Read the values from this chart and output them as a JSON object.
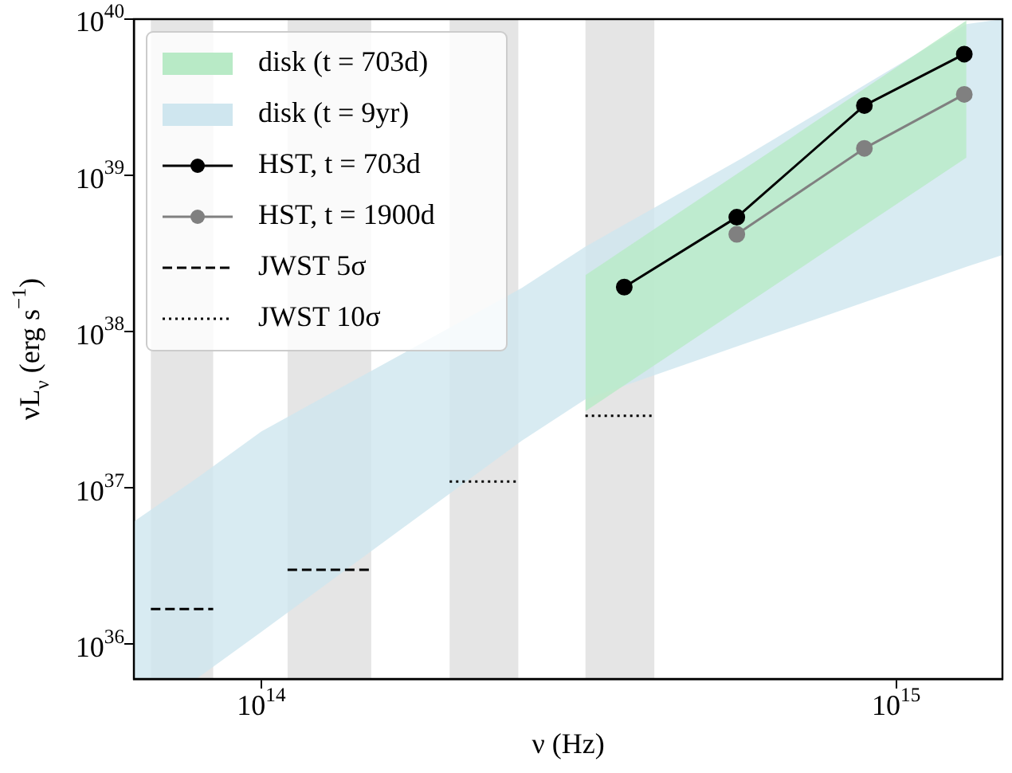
{
  "chart_data": {
    "type": "line",
    "log": "xy",
    "xlabel": "ν (Hz)",
    "ylabel": "νL$_{ν}$ (erg s$^{−1}$)",
    "xlim": [
      63000000000000.0,
      1470000000000000.0
    ],
    "ylim": [
      6e+35,
      1e+40
    ],
    "xticks": [
      {
        "value": 100000000000000.0,
        "label": "10$^{14}$"
      },
      {
        "value": 1000000000000000.0,
        "label": "10$^{15}$"
      }
    ],
    "yticks": [
      {
        "value": 1e+36,
        "label": "10$^{36}$"
      },
      {
        "value": 1e+37,
        "label": "10$^{37}$"
      },
      {
        "value": 1e+38,
        "label": "10$^{38}$"
      },
      {
        "value": 1e+39,
        "label": "10$^{39}$"
      },
      {
        "value": 1e+40,
        "label": "10$^{40}$"
      }
    ],
    "legend": "top left",
    "bands": [
      {
        "axis": "x",
        "from": 67000000000000.0,
        "to": 84000000000000.0,
        "color": "#e5e5e5"
      },
      {
        "axis": "x",
        "from": 110000000000000.0,
        "to": 149000000000000.0,
        "color": "#e5e5e5"
      },
      {
        "axis": "x",
        "from": 198000000000000.0,
        "to": 254000000000000.0,
        "color": "#e5e5e5"
      },
      {
        "axis": "x",
        "from": 324000000000000.0,
        "to": 416000000000000.0,
        "color": "#e5e5e5"
      }
    ],
    "series": [
      {
        "name": "disk (t = 703d)",
        "color": "#b8eac6",
        "x": [
          324000000000000.0,
          1290000000000000.0
        ],
        "values": [
          null,
          null
        ],
        "lower": [
          3.1e+37,
          1.3e+39
        ],
        "upper": [
          2.3e+38,
          9.8e+39
        ]
      },
      {
        "name": "disk (t = 9yr)",
        "color": "#cfe6ef",
        "x": [
          63000000000000.0,
          79000000000000.0,
          100000000000000.0,
          257000000000000.0,
          324000000000000.0,
          574000000000000.0,
          1290000000000000.0,
          1470000000000000.0
        ],
        "values": [
          null,
          null,
          null,
          null,
          null,
          null,
          null,
          null
        ],
        "lower": [
          6e+35,
          6e+35,
          1.2e+36,
          2e+37,
          3.7e+37,
          8.3e+37,
          2.6e+38,
          3.1e+38
        ],
        "upper": [
          6.1e+36,
          1.15e+37,
          2.3e+37,
          1.9e+38,
          3.5e+38,
          1.3e+39,
          9.3e+39,
          1e+40
        ]
      },
      {
        "name": "HST, t = 703d",
        "color": "#000000",
        "marker": "circle",
        "line_style": "solid",
        "x": [
          373000000000000.0,
          561000000000000.0,
          891000000000000.0,
          1280000000000000.0
        ],
        "values": [
          1.93e+38,
          5.4e+38,
          2.8e+39,
          5.97e+39
        ]
      },
      {
        "name": "HST, t = 1900d",
        "color": "#808080",
        "marker": "circle",
        "line_style": "solid",
        "x": [
          561000000000000.0,
          891000000000000.0,
          1280000000000000.0
        ],
        "values": [
          4.2e+38,
          1.49e+39,
          3.3e+39
        ]
      },
      {
        "name": "JWST 5σ",
        "type": "line",
        "color": "#000000",
        "marker": "none",
        "line_style": "dashed",
        "x": [
          67000000000000.0,
          84000000000000.0
        ],
        "values": [
          1.68e+36,
          1.68e+36
        ]
      },
      {
        "type": "line",
        "color": "#000000",
        "marker": "none",
        "line_style": "dashed",
        "x": [
          110000000000000.0,
          149000000000000.0
        ],
        "values": [
          3e+36,
          3e+36
        ]
      },
      {
        "name": "JWST 10σ",
        "type": "line",
        "color": "#000000",
        "marker": "none",
        "line_style": "dotted",
        "x": [
          198000000000000.0,
          254000000000000.0
        ],
        "values": [
          1.1e+37,
          1.1e+37
        ]
      },
      {
        "type": "line",
        "color": "#000000",
        "marker": "none",
        "line_style": "dotted",
        "x": [
          324000000000000.0,
          416000000000000.0
        ],
        "values": [
          2.9e+37,
          2.9e+37
        ]
      }
    ]
  }
}
